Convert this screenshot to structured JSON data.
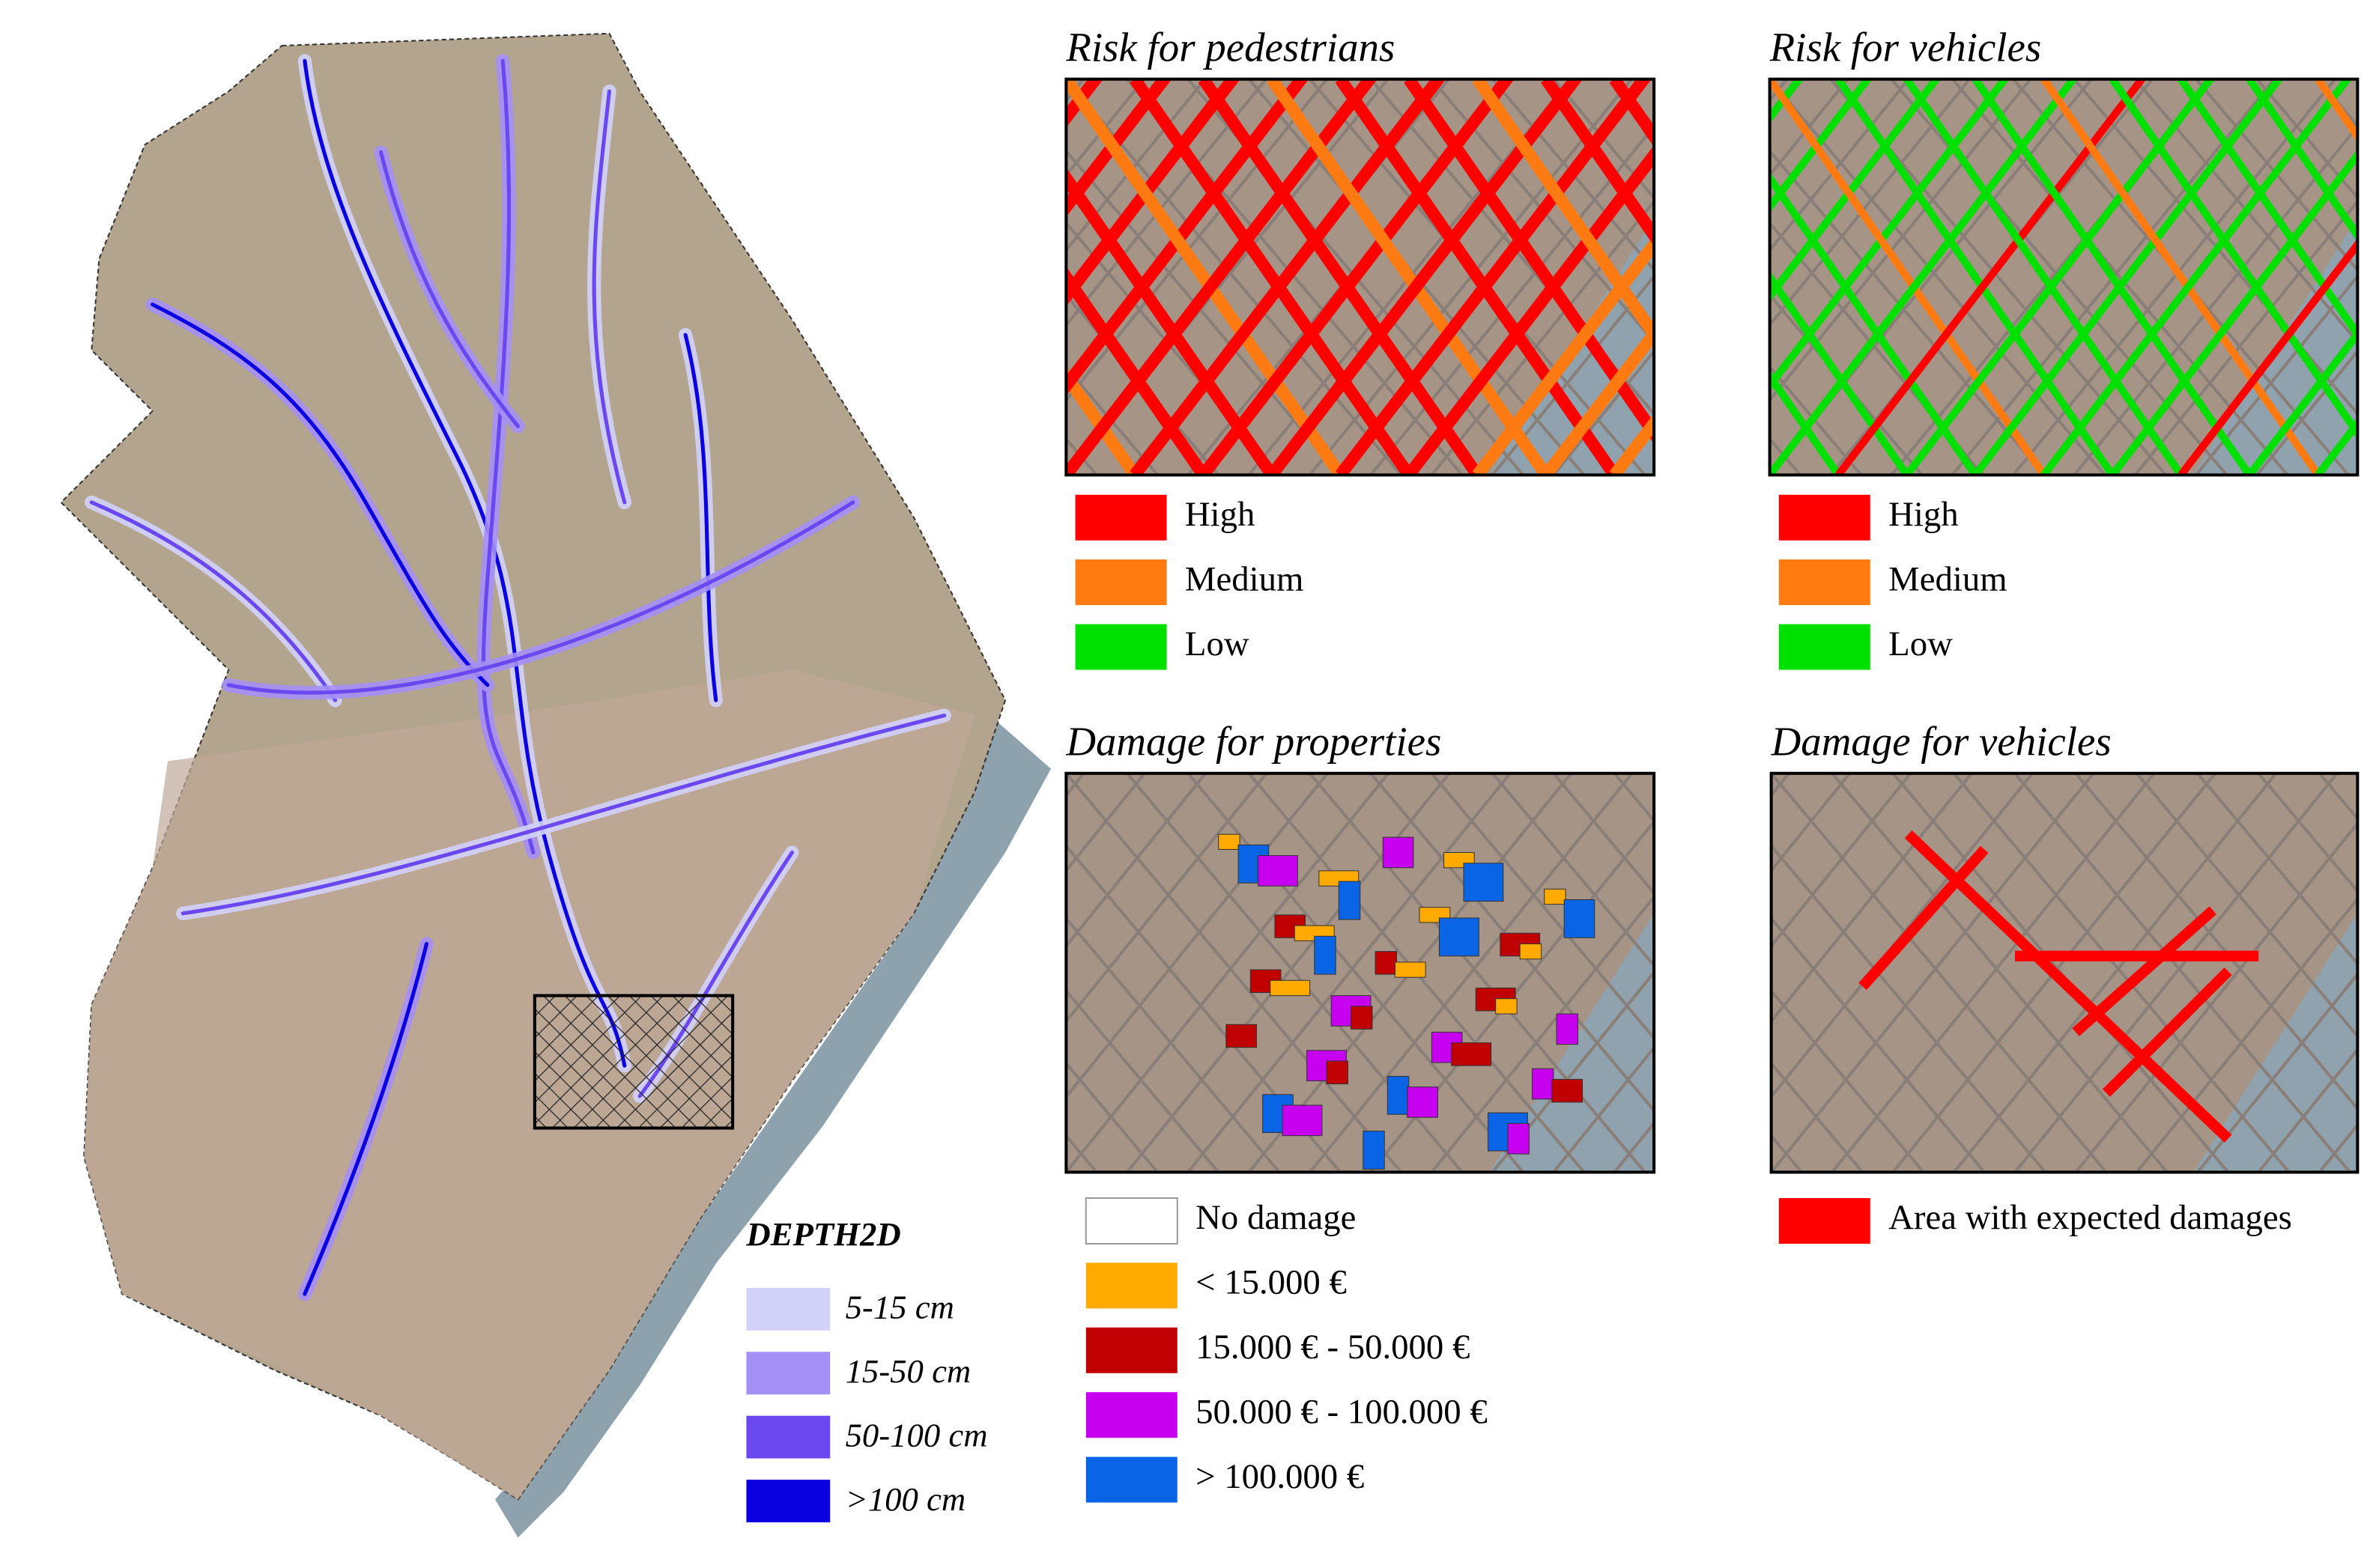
{
  "map": {
    "legend": {
      "title": "DEPTH2D",
      "items": [
        {
          "label": "5-15 cm",
          "color": "#d2d2fb"
        },
        {
          "label": "15-50 cm",
          "color": "#a48ff6"
        },
        {
          "label": "50-100 cm",
          "color": "#6a48f0"
        },
        {
          "label": ">100 cm",
          "color": "#0a00e0"
        }
      ]
    }
  },
  "panels": [
    {
      "title": "Risk for pedestrians",
      "legend": [
        {
          "label": "High",
          "color": "#ff0000"
        },
        {
          "label": "Medium",
          "color": "#ff7a10"
        },
        {
          "label": "Low",
          "color": "#00e000"
        }
      ]
    },
    {
      "title": "Risk for vehicles",
      "legend": [
        {
          "label": "High",
          "color": "#ff0000"
        },
        {
          "label": "Medium",
          "color": "#ff7a10"
        },
        {
          "label": "Low",
          "color": "#00e000"
        }
      ]
    },
    {
      "title": "Damage for properties",
      "legend": [
        {
          "label": "No damage",
          "color": "#ffffff"
        },
        {
          "label": "< 15.000 €",
          "color": "#ffaa00"
        },
        {
          "label": "15.000 € - 50.000 €",
          "color": "#c00000"
        },
        {
          "label": "50.000 € - 100.000 €",
          "color": "#c800f0"
        },
        {
          "label": "> 100.000 €",
          "color": "#0a64e6"
        }
      ]
    },
    {
      "title": "Damage for vehicles",
      "legend": [
        {
          "label": "Area with expected damages",
          "color": "#ff0000"
        }
      ]
    }
  ]
}
